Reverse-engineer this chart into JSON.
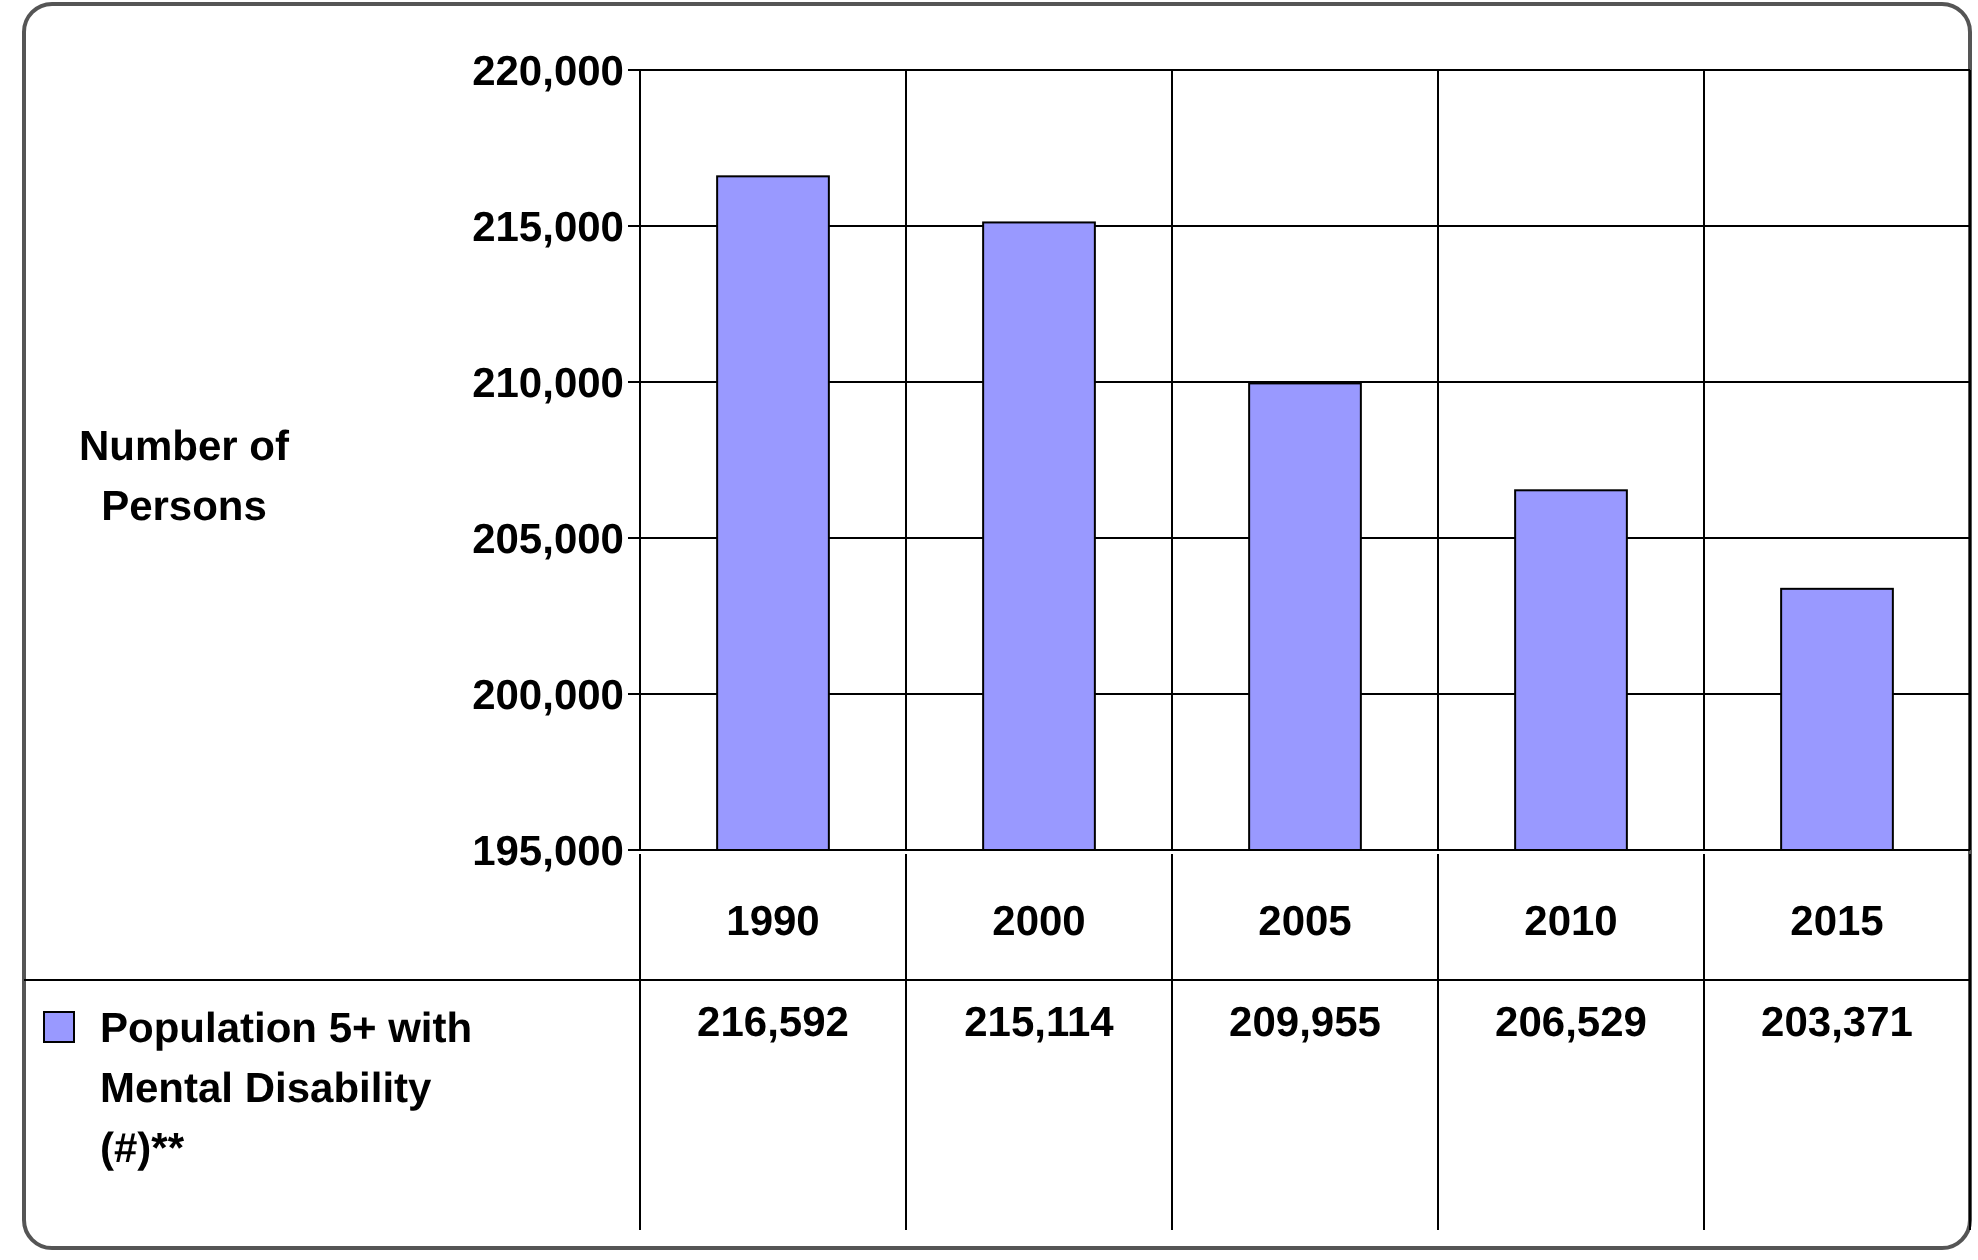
{
  "chart_data": {
    "type": "bar",
    "ylabel": "Number of Persons",
    "categories": [
      "1990",
      "2000",
      "2005",
      "2010",
      "2015"
    ],
    "series": [
      {
        "name": "Population 5+ with Mental Disability (#)**",
        "color": "#9999ff",
        "values": [
          216592,
          215114,
          209955,
          206529,
          203371
        ],
        "value_labels": [
          "216,592",
          "215,114",
          "209,955",
          "206,529",
          "203,371"
        ]
      }
    ],
    "ylim": [
      195000,
      220000
    ],
    "yticks": [
      {
        "value": 195000,
        "label": "195,000"
      },
      {
        "value": 200000,
        "label": "200,000"
      },
      {
        "value": 205000,
        "label": "205,000"
      },
      {
        "value": 210000,
        "label": "210,000"
      },
      {
        "value": 215000,
        "label": "215,000"
      },
      {
        "value": 220000,
        "label": "220,000"
      }
    ],
    "grid": true,
    "legend": "bottom left"
  }
}
